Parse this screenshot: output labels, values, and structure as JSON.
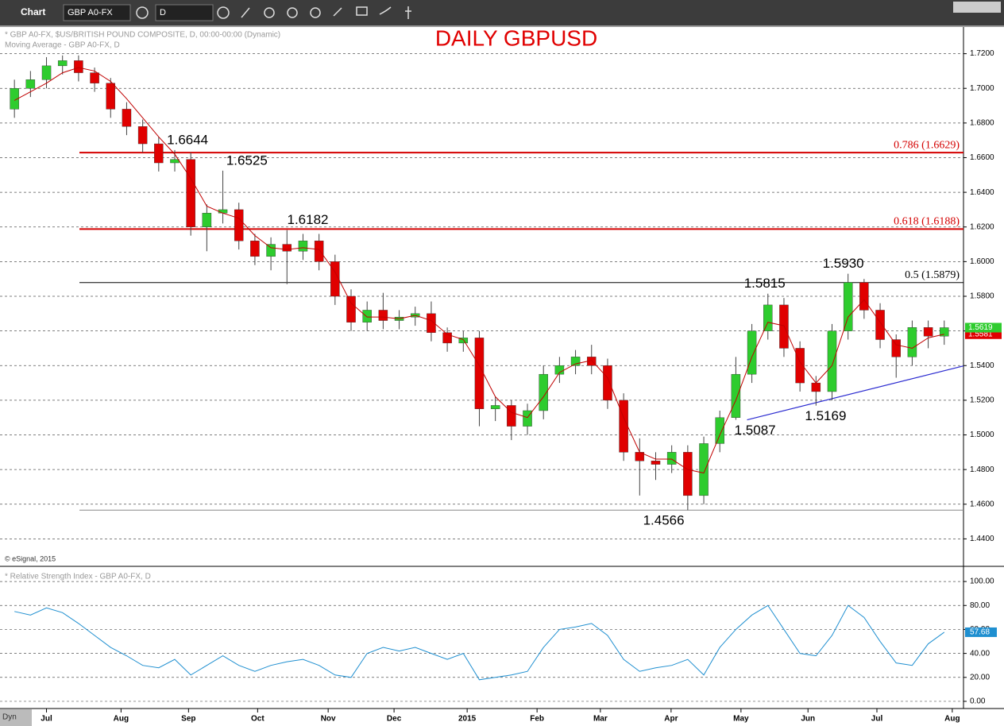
{
  "toolbar": {
    "title": "Chart",
    "symbol": "GBP A0-FX",
    "interval": "D"
  },
  "chart_data": [
    {
      "type": "candlestick",
      "title": "DAILY GBPUSD",
      "subtitle": "* GBP A0-FX, $US/BRITISH POUND COMPOSITE, D, 00:00-00:00 (Dynamic)",
      "study": "Moving Average - GBP A0-FX, D",
      "copyright": "© eSignal, 2015",
      "x": [
        -2,
        -1,
        0,
        1,
        2,
        3,
        4,
        5,
        6,
        7,
        8,
        9,
        10,
        11,
        12,
        13,
        14,
        15,
        16,
        17,
        18,
        19,
        20,
        21,
        22,
        23,
        24,
        25,
        26,
        27,
        28,
        29,
        30,
        31,
        32,
        33,
        34,
        35,
        36,
        37,
        38,
        39,
        40,
        41,
        42,
        43,
        44,
        45,
        46,
        47,
        48,
        49,
        50,
        51,
        52,
        53,
        54,
        55,
        56
      ],
      "open": [
        1.688,
        1.7,
        1.705,
        1.713,
        1.716,
        1.709,
        1.703,
        1.688,
        1.678,
        1.668,
        1.657,
        1.659,
        1.62,
        1.628,
        1.63,
        1.612,
        1.603,
        1.61,
        1.606,
        1.612,
        1.6,
        1.58,
        1.565,
        1.572,
        1.566,
        1.568,
        1.57,
        1.559,
        1.553,
        1.556,
        1.515,
        1.517,
        1.505,
        1.514,
        1.535,
        1.54,
        1.545,
        1.54,
        1.52,
        1.49,
        1.485,
        1.483,
        1.49,
        1.465,
        1.495,
        1.51,
        1.535,
        1.56,
        1.575,
        1.55,
        1.53,
        1.525,
        1.56,
        1.588,
        1.572,
        1.555,
        1.545,
        1.562,
        1.557
      ],
      "high": [
        1.705,
        1.71,
        1.718,
        1.719,
        1.719,
        1.712,
        1.706,
        1.692,
        1.682,
        1.672,
        1.6644,
        1.663,
        1.633,
        1.6525,
        1.634,
        1.616,
        1.614,
        1.6182,
        1.616,
        1.616,
        1.604,
        1.584,
        1.577,
        1.582,
        1.572,
        1.574,
        1.577,
        1.562,
        1.56,
        1.56,
        1.522,
        1.52,
        1.518,
        1.54,
        1.545,
        1.549,
        1.552,
        1.544,
        1.524,
        1.498,
        1.49,
        1.494,
        1.494,
        1.499,
        1.514,
        1.545,
        1.564,
        1.5815,
        1.579,
        1.554,
        1.534,
        1.564,
        1.593,
        1.59,
        1.576,
        1.558,
        1.566,
        1.566,
        1.566
      ],
      "low": [
        1.683,
        1.695,
        1.7,
        1.708,
        1.704,
        1.698,
        1.683,
        1.673,
        1.663,
        1.652,
        1.652,
        1.615,
        1.606,
        1.622,
        1.607,
        1.598,
        1.595,
        1.587,
        1.601,
        1.595,
        1.575,
        1.56,
        1.56,
        1.561,
        1.561,
        1.563,
        1.554,
        1.548,
        1.548,
        1.505,
        1.508,
        1.497,
        1.5,
        1.509,
        1.53,
        1.535,
        1.535,
        1.515,
        1.485,
        1.465,
        1.474,
        1.478,
        1.4566,
        1.46,
        1.49,
        1.5087,
        1.53,
        1.555,
        1.545,
        1.525,
        1.5169,
        1.52,
        1.555,
        1.567,
        1.55,
        1.533,
        1.54,
        1.55,
        1.552
      ],
      "close": [
        1.7,
        1.705,
        1.713,
        1.716,
        1.709,
        1.703,
        1.688,
        1.678,
        1.668,
        1.657,
        1.659,
        1.62,
        1.628,
        1.63,
        1.612,
        1.603,
        1.61,
        1.606,
        1.612,
        1.6,
        1.58,
        1.565,
        1.572,
        1.566,
        1.568,
        1.57,
        1.559,
        1.553,
        1.556,
        1.515,
        1.517,
        1.505,
        1.514,
        1.535,
        1.54,
        1.545,
        1.54,
        1.52,
        1.49,
        1.485,
        1.483,
        1.49,
        1.465,
        1.495,
        1.51,
        1.535,
        1.56,
        1.575,
        1.55,
        1.53,
        1.525,
        1.56,
        1.588,
        1.572,
        1.555,
        1.545,
        1.562,
        1.557,
        1.5619
      ],
      "up_color": "#2ecc2e",
      "down_color": "#e00000",
      "series": [
        {
          "color": "#c00000",
          "values": [
            1.693,
            1.698,
            1.703,
            1.709,
            1.712,
            1.71,
            1.704,
            1.694,
            1.683,
            1.672,
            1.662,
            1.648,
            1.632,
            1.628,
            1.625,
            1.615,
            1.608,
            1.607,
            1.608,
            1.607,
            1.594,
            1.576,
            1.568,
            1.568,
            1.567,
            1.569,
            1.566,
            1.558,
            1.555,
            1.54,
            1.522,
            1.513,
            1.51,
            1.522,
            1.536,
            1.541,
            1.543,
            1.533,
            1.51,
            1.49,
            1.486,
            1.486,
            1.48,
            1.478,
            1.5,
            1.52,
            1.545,
            1.565,
            1.563,
            1.542,
            1.53,
            1.54,
            1.568,
            1.578,
            1.565,
            1.552,
            1.55,
            1.556,
            1.5581
          ]
        }
      ],
      "levels": [
        {
          "label": "0.786 (1.6629)",
          "value": 1.6629,
          "color": "#d40000"
        },
        {
          "label": "0.618 (1.6188)",
          "value": 1.6188,
          "color": "#d40000"
        },
        {
          "label": "0.5 (1.5879)",
          "value": 1.5879,
          "color": "#000000"
        },
        {
          "value": 1.4566,
          "color": "#888888"
        }
      ],
      "annotations": [
        {
          "label": "1.6644",
          "x": 8.8,
          "y": 1.6644
        },
        {
          "label": "1.6525",
          "x": 12.5,
          "y": 1.6525
        },
        {
          "label": "1.6182",
          "x": 16.3,
          "y": 1.6182
        },
        {
          "label": "1.4566",
          "x": 38.5,
          "y": 1.4566
        },
        {
          "label": "1.5087",
          "x": 44.2,
          "y": 1.5087
        },
        {
          "label": "1.5815",
          "x": 44.8,
          "y": 1.5815
        },
        {
          "label": "1.5169",
          "x": 48.6,
          "y": 1.5169
        },
        {
          "label": "1.5930",
          "x": 49.7,
          "y": 1.593
        }
      ],
      "trendline": {
        "color": "#2b2bd0",
        "x": [
          43.7,
          57.2
        ],
        "y": [
          1.5087,
          1.5398
        ]
      },
      "xlim": [
        -2.9,
        57.2
      ],
      "xticks": [
        {
          "value": 0,
          "label": "Jul"
        },
        {
          "value": 4.65,
          "label": "Aug"
        },
        {
          "value": 8.86,
          "label": "Sep"
        },
        {
          "value": 13.17,
          "label": "Oct"
        },
        {
          "value": 17.57,
          "label": "Nov"
        },
        {
          "value": 21.68,
          "label": "Dec"
        },
        {
          "value": 26.24,
          "label": "2015"
        },
        {
          "value": 30.6,
          "label": "Feb"
        },
        {
          "value": 34.55,
          "label": "Mar"
        },
        {
          "value": 38.96,
          "label": "Apr"
        },
        {
          "value": 43.32,
          "label": "May"
        },
        {
          "value": 47.5,
          "label": "Jun"
        },
        {
          "value": 51.8,
          "label": "Jul"
        },
        {
          "value": 56.5,
          "label": "Aug"
        }
      ],
      "ylim": [
        1.4246,
        1.7354
      ],
      "yticks": [
        {
          "value": 1.44,
          "label": "1.4400"
        },
        {
          "value": 1.46,
          "label": "1.4600"
        },
        {
          "value": 1.48,
          "label": "1.4800"
        },
        {
          "value": 1.5,
          "label": "1.5000"
        },
        {
          "value": 1.52,
          "label": "1.5200"
        },
        {
          "value": 1.54,
          "label": "1.5400"
        },
        {
          "value": 1.56,
          "label": "1.5600"
        },
        {
          "value": 1.58,
          "label": "1.5800"
        },
        {
          "value": 1.6,
          "label": "1.6000"
        },
        {
          "value": 1.62,
          "label": "1.6200"
        },
        {
          "value": 1.64,
          "label": "1.6400"
        },
        {
          "value": 1.66,
          "label": "1.6600"
        },
        {
          "value": 1.68,
          "label": "1.6800"
        },
        {
          "value": 1.7,
          "label": "1.7000"
        },
        {
          "value": 1.72,
          "label": "1.7200"
        }
      ],
      "grid": true
    },
    {
      "type": "line",
      "title": "* Relative Strength Index - GBP A0-FX, D",
      "series": [
        {
          "color": "#1f8fd0",
          "values": [
            75,
            72,
            78,
            74,
            65,
            55,
            45,
            38,
            30,
            28,
            35,
            22,
            30,
            38,
            30,
            25,
            30,
            33,
            35,
            30,
            22,
            20,
            40,
            45,
            42,
            45,
            40,
            35,
            40,
            18,
            20,
            22,
            25,
            45,
            60,
            62,
            65,
            55,
            35,
            25,
            28,
            30,
            35,
            22,
            45,
            60,
            72,
            80,
            60,
            40,
            38,
            55,
            80,
            70,
            50,
            32,
            30,
            48,
            57.68
          ]
        }
      ],
      "ylim": [
        -6,
        112
      ],
      "yticks": [
        {
          "value": 0,
          "label": "0.00"
        },
        {
          "value": 20,
          "label": "20.00"
        },
        {
          "value": 40,
          "label": "40.00"
        },
        {
          "value": 60,
          "label": "60.00"
        },
        {
          "value": 80,
          "label": "80.00"
        },
        {
          "value": 100,
          "label": "100.00"
        }
      ],
      "grid": true
    }
  ],
  "status": "Dyn"
}
